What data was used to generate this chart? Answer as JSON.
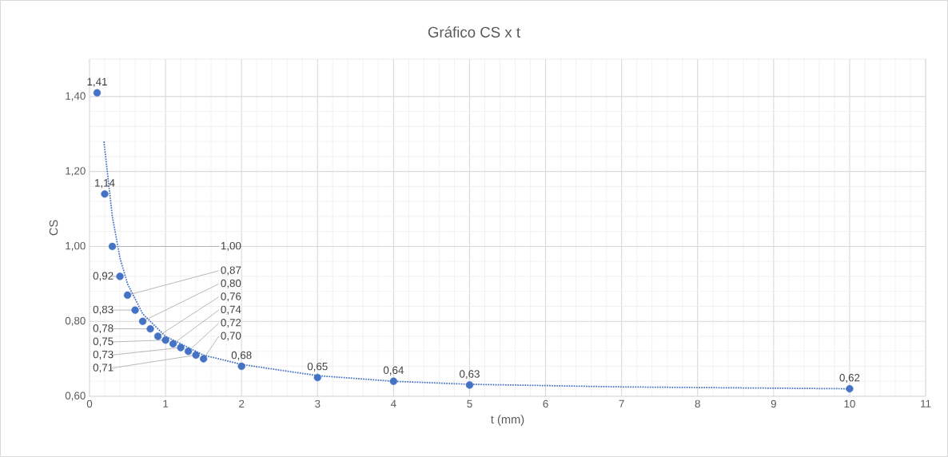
{
  "chart_data": {
    "type": "scatter",
    "title": "Gráfico CS x t",
    "xlabel": "t (mm)",
    "ylabel": "CS",
    "xlim": [
      0,
      11
    ],
    "ylim": [
      0.6,
      1.5
    ],
    "xticks": [
      0,
      1,
      2,
      3,
      4,
      5,
      6,
      7,
      8,
      9,
      10,
      11
    ],
    "yticks": [
      {
        "value": 0.6,
        "label": "0,60"
      },
      {
        "value": 0.8,
        "label": "0,80"
      },
      {
        "value": 1.0,
        "label": "1,00"
      },
      {
        "value": 1.2,
        "label": "1,20"
      },
      {
        "value": 1.4,
        "label": "1,40"
      }
    ],
    "grid": true,
    "marker": "circle",
    "series": [
      {
        "color": "#4472c4",
        "x": [
          0.1,
          0.2,
          0.3,
          0.4,
          0.5,
          0.6,
          0.7,
          0.8,
          0.9,
          1.0,
          1.1,
          1.2,
          1.3,
          1.4,
          1.5,
          2,
          3,
          4,
          5,
          10
        ],
        "values": [
          1.41,
          1.14,
          1.0,
          0.92,
          0.87,
          0.83,
          0.8,
          0.78,
          0.76,
          0.75,
          0.74,
          0.73,
          0.72,
          0.71,
          0.7,
          0.68,
          0.65,
          0.64,
          0.63,
          0.62
        ],
        "value_labels": [
          "1,41",
          "1,14",
          "1,00",
          "0,92",
          "0,87",
          "0,83",
          "0,80",
          "0,78",
          "0,76",
          "0,75",
          "0,74",
          "0,73",
          "0,72",
          "0,71",
          "0,70",
          "0,68",
          "0,65",
          "0,64",
          "0,63",
          "0,62"
        ]
      },
      {
        "type": "line",
        "color": "#4472c4",
        "line_style": "dotted",
        "marker": "none",
        "x": [
          0.19,
          0.3,
          0.4,
          0.5,
          0.7,
          1.0,
          1.5,
          2,
          3,
          4,
          5,
          7,
          10
        ],
        "values": [
          1.28,
          1.08,
          0.97,
          0.9,
          0.82,
          0.76,
          0.71,
          0.685,
          0.655,
          0.64,
          0.632,
          0.625,
          0.62
        ]
      }
    ]
  }
}
